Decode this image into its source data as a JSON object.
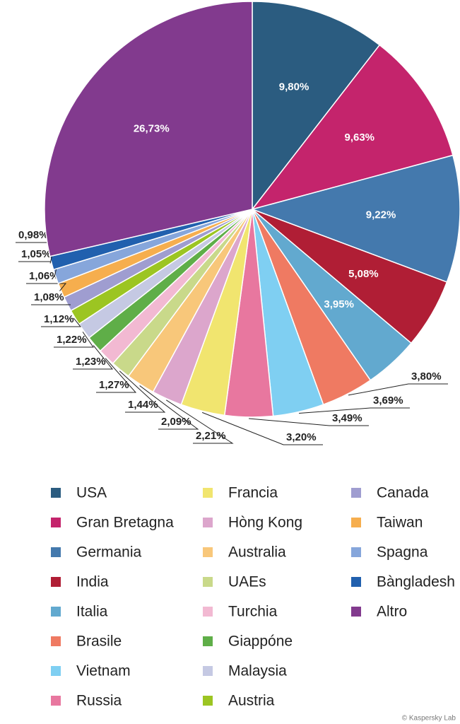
{
  "chart_data": {
    "type": "pie",
    "categories": [
      "USA",
      "Gran Bretagna",
      "Germania",
      "India",
      "Italia",
      "Brasile",
      "Vietnam",
      "Russia",
      "Francia",
      "Hòng Kong",
      "Australia",
      "UAEs",
      "Turchia",
      "Giappóne",
      "Malaysia",
      "Austria",
      "Canada",
      "Taiwan",
      "Spagna",
      "Bàngladesh",
      "Altro"
    ],
    "values": [
      9.8,
      9.63,
      9.22,
      5.08,
      3.95,
      3.8,
      3.69,
      3.49,
      3.2,
      2.21,
      2.09,
      1.44,
      1.27,
      1.23,
      1.22,
      1.12,
      1.08,
      1.06,
      1.05,
      0.98,
      26.73
    ],
    "value_labels": [
      "9,80%",
      "9,63%",
      "9,22%",
      "5,08%",
      "3,95%",
      "3,80%",
      "3,69%",
      "3,49%",
      "3,20%",
      "2,21%",
      "2,09%",
      "1,44%",
      "1,27%",
      "1,23%",
      "1,22%",
      "1,12%",
      "1,08%",
      "1,06%",
      "1,05%",
      "0,98%",
      "26,73%"
    ],
    "colors": [
      "#2b5c80",
      "#c4246c",
      "#4479ad",
      "#b01e35",
      "#62a9cf",
      "#ef7a62",
      "#7fcff2",
      "#e8779f",
      "#f1e56f",
      "#dca6cc",
      "#f8c77a",
      "#c9d98a",
      "#f2b9d2",
      "#5fae48",
      "#c5c9e3",
      "#9cc522",
      "#9f9dd0",
      "#f6ae4e",
      "#86a6db",
      "#2160ae",
      "#823a8e"
    ],
    "credit": "© Kaspersky Lab"
  }
}
